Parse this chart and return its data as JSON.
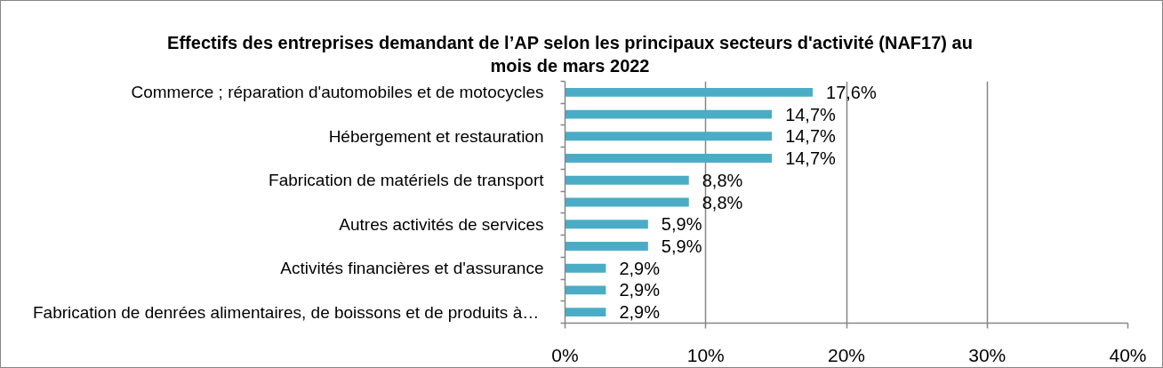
{
  "chart_data": {
    "type": "bar",
    "orientation": "horizontal",
    "title": "Effectifs des entreprises demandant de l’AP selon les principaux secteurs d'activité (NAF17) au mois de mars 2022",
    "categories": [
      "Commerce ; réparation d'automobiles et de motocycles",
      null,
      "Hébergement et restauration",
      null,
      "Fabrication de matériels de transport",
      null,
      "Autres activités de services",
      null,
      "Activités financières et d'assurance",
      null,
      "Fabrication de denrées alimentaires, de boissons et  de produits à…"
    ],
    "values": [
      17.6,
      14.7,
      14.7,
      14.7,
      8.8,
      8.8,
      5.9,
      5.9,
      2.9,
      2.9,
      2.9
    ],
    "value_labels": [
      "17,6%",
      "14,7%",
      "14,7%",
      "14,7%",
      "8,8%",
      "8,8%",
      "5,9%",
      "5,9%",
      "2,9%",
      "2,9%",
      "2,9%"
    ],
    "color": "#4bacc6",
    "xlim": [
      0,
      40
    ],
    "xticks": [
      {
        "value": 0,
        "label": "0%"
      },
      {
        "value": 10,
        "label": "10%"
      },
      {
        "value": 20,
        "label": "20%"
      },
      {
        "value": 30,
        "label": "30%"
      },
      {
        "value": 40,
        "label": "40%"
      }
    ],
    "grid": "x"
  }
}
